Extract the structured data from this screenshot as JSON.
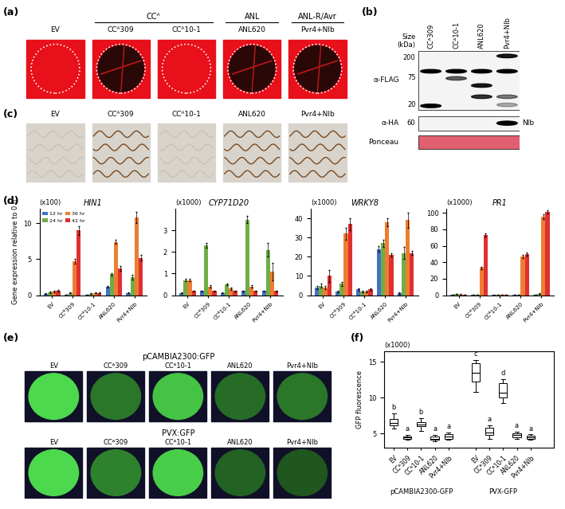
{
  "panel_labels": [
    "(a)",
    "(b)",
    "(c)",
    "(d)",
    "(e)",
    "(f)"
  ],
  "a": {
    "columns": [
      "EV",
      "CCᴬ309",
      "CCᴬ10-1",
      "ANL620",
      "Pvr4+NIb"
    ],
    "groups": [
      {
        "label": "CCᴬ",
        "members": [
          "CCᴬ309",
          "CCᴬ10-1"
        ]
      },
      {
        "label": "ANL",
        "members": [
          "ANL620"
        ]
      },
      {
        "label": "ANL-R/Avr",
        "members": [
          "Pvr4+NIb"
        ]
      }
    ]
  },
  "b": {
    "lanes": [
      "CCᴬ309",
      "CCᴬ10-1",
      "ANL620",
      "Pvr4+NIb"
    ],
    "size_label": "Size\n(kDa)",
    "flag_markers": [
      200,
      75,
      20
    ],
    "ha_marker": 60,
    "blots": [
      "α-FLAG",
      "α-HA",
      "Ponceau"
    ],
    "band_label": "NIb"
  },
  "c": {
    "columns": [
      "EV",
      "CCᴬ309",
      "CCᴬ10-1",
      "ANL620",
      "Pvr4+NIb"
    ]
  },
  "e": {
    "rows": [
      "pCAMBIA2300:GFP",
      "PVX:GFP"
    ],
    "columns": [
      "EV",
      "CCᴬ309",
      "CCᴬ10-1",
      "ANL620",
      "Pvr4+NIb"
    ]
  },
  "chart_data": [
    {
      "type": "bar",
      "title": "HIN1",
      "multiplier": "(x100)",
      "y_label": "Gene expression relative to 0 h",
      "categories": [
        "EV",
        "CCᴬ309",
        "CCᴬ10-1",
        "ANL620",
        "Pvr4+NIb"
      ],
      "series": [
        {
          "name": "12 hr",
          "color": "#4472c4",
          "values": [
            0.2,
            0.1,
            0.1,
            1.2,
            0.3
          ],
          "errors": [
            0.05,
            0.02,
            0.02,
            0.1,
            0.05
          ]
        },
        {
          "name": "24 hr",
          "color": "#70ad47",
          "values": [
            0.4,
            0.3,
            0.2,
            2.9,
            2.5
          ],
          "errors": [
            0.1,
            0.05,
            0.05,
            0.2,
            0.3
          ]
        },
        {
          "name": "36 hr",
          "color": "#ed7d31",
          "values": [
            0.5,
            4.7,
            0.3,
            7.4,
            10.8
          ],
          "errors": [
            0.1,
            0.3,
            0.05,
            0.3,
            0.8
          ]
        },
        {
          "name": "42 hr",
          "color": "#e03030",
          "values": [
            0.6,
            9.0,
            0.3,
            3.7,
            5.2
          ],
          "errors": [
            0.1,
            0.6,
            0.05,
            0.3,
            0.4
          ]
        }
      ],
      "ylim": [
        0,
        12
      ],
      "yticks": [
        0,
        5,
        10
      ],
      "legend": "upper left"
    },
    {
      "type": "bar",
      "title": "CYP71D20",
      "multiplier": "(x1000)",
      "categories": [
        "EV",
        "CCᴬ309",
        "CCᴬ10-1",
        "ANL620",
        "Pvr4+NIb"
      ],
      "series": [
        {
          "name": "12 hr",
          "color": "#4472c4",
          "values": [
            0.1,
            0.2,
            0.1,
            0.2,
            0.2
          ],
          "errors": [
            0.02,
            0.02,
            0.02,
            0.02,
            0.02
          ]
        },
        {
          "name": "24 hr",
          "color": "#70ad47",
          "values": [
            0.7,
            2.3,
            0.5,
            3.5,
            2.1
          ],
          "errors": [
            0.05,
            0.1,
            0.05,
            0.15,
            0.3
          ]
        },
        {
          "name": "36 hr",
          "color": "#ed7d31",
          "values": [
            0.7,
            0.4,
            0.3,
            0.4,
            1.1
          ],
          "errors": [
            0.05,
            0.05,
            0.05,
            0.05,
            0.4
          ]
        },
        {
          "name": "42 hr",
          "color": "#e03030",
          "values": [
            0.2,
            0.2,
            0.2,
            0.2,
            0.2
          ],
          "errors": [
            0.02,
            0.02,
            0.02,
            0.02,
            0.02
          ]
        }
      ],
      "ylim": [
        0,
        4
      ],
      "yticks": [
        0,
        1,
        2,
        3
      ]
    },
    {
      "type": "bar",
      "title": "WRKY8",
      "multiplier": "(x1000)",
      "categories": [
        "EV",
        "CCᴬ309",
        "CCᴬ10-1",
        "ANL620",
        "Pvr4+NIb"
      ],
      "series": [
        {
          "name": "12 hr",
          "color": "#4472c4",
          "values": [
            4,
            2,
            3,
            24,
            1
          ],
          "errors": [
            0.8,
            0.5,
            0.6,
            1.5,
            0.3
          ]
        },
        {
          "name": "24 hr",
          "color": "#70ad47",
          "values": [
            5,
            6,
            2,
            27,
            22
          ],
          "errors": [
            1,
            1,
            0.5,
            2,
            3
          ]
        },
        {
          "name": "36 hr",
          "color": "#ed7d31",
          "values": [
            4,
            32,
            2,
            38,
            39
          ],
          "errors": [
            1,
            3,
            0.5,
            2,
            4
          ]
        },
        {
          "name": "42 hr",
          "color": "#e03030",
          "values": [
            10,
            37,
            3,
            21,
            22
          ],
          "errors": [
            3,
            3,
            0.6,
            1,
            1
          ]
        }
      ],
      "ylim": [
        0,
        45
      ],
      "yticks": [
        0,
        10,
        20,
        30,
        40
      ]
    },
    {
      "type": "bar",
      "title": "PR1",
      "multiplier": "(x1000)",
      "categories": [
        "EV",
        "CCᴬ309",
        "CCᴬ10-1",
        "ANL620",
        "Pvr4+NIb"
      ],
      "series": [
        {
          "name": "12 hr",
          "color": "#4472c4",
          "values": [
            0.5,
            0.3,
            0.2,
            0.3,
            0.5
          ],
          "errors": [
            0.1,
            0.1,
            0.1,
            0.1,
            0.1
          ]
        },
        {
          "name": "24 hr",
          "color": "#70ad47",
          "values": [
            1.5,
            0.5,
            0.5,
            0.5,
            2
          ],
          "errors": [
            0.3,
            0.1,
            0.1,
            0.1,
            0.4
          ]
        },
        {
          "name": "36 hr",
          "color": "#ed7d31",
          "values": [
            1,
            33,
            0.5,
            47,
            95
          ],
          "errors": [
            0.2,
            1,
            0.1,
            2,
            3
          ]
        },
        {
          "name": "42 hr",
          "color": "#e03030",
          "values": [
            0.5,
            73,
            0.5,
            50,
            101
          ],
          "errors": [
            0.1,
            2,
            0.1,
            2,
            2
          ]
        }
      ],
      "ylim": [
        0,
        105
      ],
      "yticks": [
        0,
        20,
        40,
        60,
        80,
        100
      ]
    },
    {
      "type": "box",
      "y_label": "GFP fluorescence",
      "multiplier": "(x1000)",
      "groups": [
        {
          "name": "pCAMBIA2300-GFP",
          "categories": [
            "EV",
            "CCᴬ309",
            "CCᴬ10-1",
            "ANL620",
            "Pvr4+NIb"
          ],
          "letters": [
            "b",
            "a",
            "b",
            "a",
            "a"
          ],
          "boxes": [
            {
              "median": 6.5,
              "q1": 6.1,
              "q3": 7.0,
              "low": 5.7,
              "high": 7.8
            },
            {
              "median": 4.5,
              "q1": 4.3,
              "q3": 4.6,
              "low": 4.1,
              "high": 4.8
            },
            {
              "median": 6.3,
              "q1": 6.0,
              "q3": 6.6,
              "low": 5.4,
              "high": 7.2
            },
            {
              "median": 4.3,
              "q1": 4.1,
              "q3": 4.6,
              "low": 3.9,
              "high": 4.8
            },
            {
              "median": 4.6,
              "q1": 4.3,
              "q3": 4.9,
              "low": 4.1,
              "high": 5.2
            }
          ]
        },
        {
          "name": "PVX-GFP",
          "categories": [
            "EV",
            "CCᴬ309",
            "CCᴬ10-1",
            "ANL620",
            "Pvr4+NIb"
          ],
          "letters": [
            "c",
            "a",
            "d",
            "a",
            "a"
          ],
          "boxes": [
            {
              "median": 13.5,
              "q1": 12.3,
              "q3": 14.8,
              "low": 10.8,
              "high": 15.3
            },
            {
              "median": 5.2,
              "q1": 4.8,
              "q3": 5.8,
              "low": 4.3,
              "high": 6.2
            },
            {
              "median": 10.7,
              "q1": 10.0,
              "q3": 12.0,
              "low": 9.3,
              "high": 12.6
            },
            {
              "median": 4.8,
              "q1": 4.5,
              "q3": 5.0,
              "low": 4.3,
              "high": 5.3
            },
            {
              "median": 4.5,
              "q1": 4.3,
              "q3": 4.7,
              "low": 4.1,
              "high": 4.9
            }
          ]
        }
      ],
      "ylim": [
        3,
        16.5
      ],
      "yticks": [
        5,
        10,
        15
      ]
    }
  ]
}
